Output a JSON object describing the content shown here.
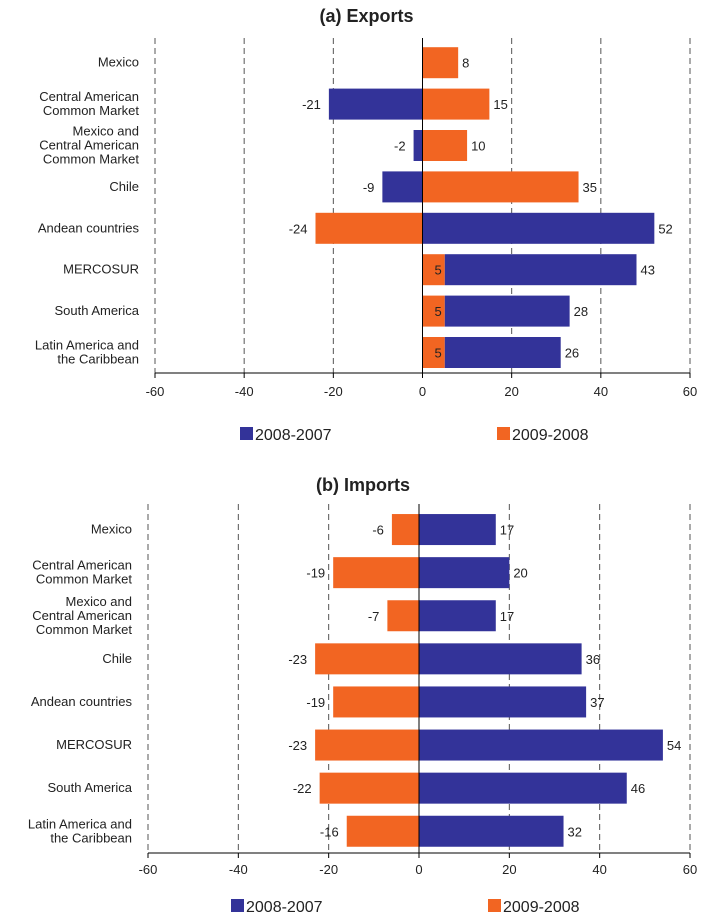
{
  "colors": {
    "series_2008_2007": "#333399",
    "series_2009_2008": "#f26522",
    "axis": "#000000",
    "grid": "#555555",
    "text": "#222222"
  },
  "chart_data": [
    {
      "type": "bar",
      "orientation": "horizontal",
      "title": "(a) Exports",
      "categories": [
        "Mexico",
        "Central American\nCommon Market",
        "Mexico and\nCentral American\nCommon Market",
        "Chile",
        "Andean countries",
        "MERCOSUR",
        "South America",
        "Latin America and\nthe Caribbean"
      ],
      "series": [
        {
          "name": "2008-2007",
          "color": "#333399",
          "values": [
            null,
            -21,
            -2,
            -9,
            52,
            43,
            28,
            26
          ]
        },
        {
          "name": "2009-2008",
          "color": "#f26522",
          "values": [
            8,
            15,
            10,
            35,
            -24,
            5,
            5,
            5
          ]
        }
      ],
      "xlim": [
        -60,
        60
      ],
      "xticks": [
        -60,
        -40,
        -20,
        0,
        20,
        40,
        60
      ],
      "grid": "vertical dashed",
      "legend": "bottom"
    },
    {
      "type": "bar",
      "orientation": "horizontal",
      "title": "(b) Imports",
      "categories": [
        "Mexico",
        "Central American\nCommon Market",
        "Mexico and\nCentral American\nCommon Market",
        "Chile",
        "Andean countries",
        "MERCOSUR",
        "South America",
        "Latin America and\nthe Caribbean"
      ],
      "series": [
        {
          "name": "2008-2007",
          "color": "#333399",
          "values": [
            17,
            20,
            17,
            36,
            37,
            54,
            46,
            32
          ]
        },
        {
          "name": "2009-2008",
          "color": "#f26522",
          "values": [
            -6,
            -19,
            -7,
            -23,
            -19,
            -23,
            -22,
            -16
          ]
        }
      ],
      "xlim": [
        -60,
        60
      ],
      "xticks": [
        -60,
        -40,
        -20,
        0,
        20,
        40,
        60
      ],
      "grid": "vertical dashed",
      "legend": "bottom"
    }
  ]
}
